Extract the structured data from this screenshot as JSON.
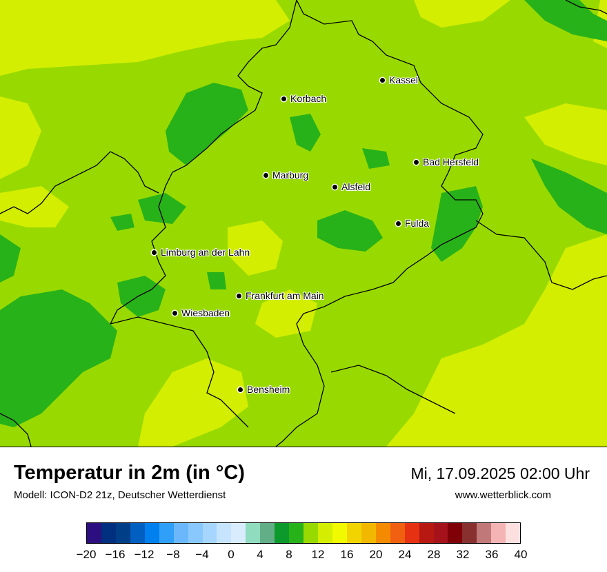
{
  "title": "Temperatur in 2m (in °C)",
  "model": "Modell: ICON-D2 21z, Deutscher Wetterdienst",
  "datetime": "Mi, 17.09.2025 02:00 Uhr",
  "website": "www.wetterblick.com",
  "cities": [
    {
      "name": "Kassel"
    },
    {
      "name": "Korbach"
    },
    {
      "name": "Bad Hersfeld"
    },
    {
      "name": "Marburg"
    },
    {
      "name": "Alsfeld"
    },
    {
      "name": "Fulda"
    },
    {
      "name": "Limburg an der Lahn"
    },
    {
      "name": "Frankfurt am Main"
    },
    {
      "name": "Wiesbaden"
    },
    {
      "name": "Bensheim"
    }
  ],
  "legend": {
    "unit": "°C",
    "colors": [
      "#2c0e80",
      "#002f80",
      "#003e88",
      "#005fc0",
      "#0080ee",
      "#2f9ff8",
      "#6ab8fb",
      "#88c8fc",
      "#a6d5fd",
      "#c6e4fe",
      "#d8ecfe",
      "#90dcbe",
      "#62ae86",
      "#0c9a2c",
      "#28b21a",
      "#98da00",
      "#d3ee00",
      "#f2fa00",
      "#f2d400",
      "#f2b800",
      "#f48a00",
      "#f06010",
      "#e63212",
      "#b81812",
      "#a6121a",
      "#800008",
      "#883030",
      "#c07878",
      "#f4b4b4",
      "#fce0e0"
    ],
    "ticks": [
      "−20",
      "−16",
      "−12",
      "−8",
      "−4",
      "0",
      "4",
      "8",
      "12",
      "16",
      "20",
      "24",
      "28",
      "32",
      "36",
      "40"
    ]
  }
}
